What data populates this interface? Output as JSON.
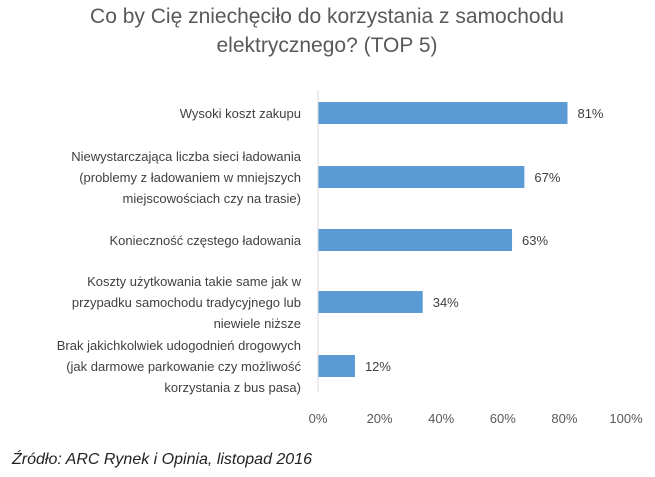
{
  "chart_data": {
    "type": "bar",
    "orientation": "horizontal",
    "title_lines": [
      "Co by Cię zniechęciło do korzystania z samochodu",
      "elektrycznego? (TOP 5)"
    ],
    "categories": [
      [
        "Wysoki koszt zakupu"
      ],
      [
        "Niewystarczająca liczba sieci ładowania",
        "(problemy z ładowaniem w mniejszych",
        "miejscowościach czy na trasie)"
      ],
      [
        "Konieczność częstego ładowania"
      ],
      [
        "Koszty użytkowania takie same jak w",
        "przypadku samochodu tradycyjnego lub",
        "niewiele niższe"
      ],
      [
        "Brak jakichkolwiek udogodnień drogowych",
        "(jak darmowe parkowanie czy możliwość",
        "korzystania z bus pasa)"
      ]
    ],
    "values": [
      81,
      67,
      63,
      34,
      12
    ],
    "data_labels": [
      "81%",
      "67%",
      "63%",
      "34%",
      "12%"
    ],
    "xlim": [
      0,
      100
    ],
    "ticks": [
      "0%",
      "20%",
      "40%",
      "60%",
      "80%",
      "100%"
    ],
    "grid": false,
    "bar_color": "#5b9bd5"
  },
  "source": "Źródło: ARC Rynek i Opinia, listopad 2016"
}
